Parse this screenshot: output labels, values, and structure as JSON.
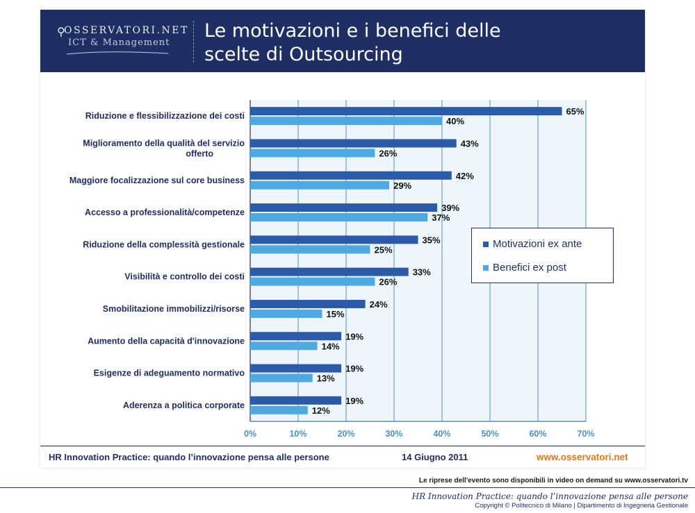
{
  "header": {
    "logo_text": "OSSERVATORI.NET",
    "logo_sub": "ICT & Management",
    "title_line1": "Le motivazioni e i benefici delle",
    "title_line2": "scelte di Outsourcing"
  },
  "colors": {
    "header_bg": "#1f2f63",
    "series_ante": "#2a5aa8",
    "series_post": "#4fa9e0",
    "grid": "#4f92c8",
    "accent_orange": "#e07a1f"
  },
  "chart_data": {
    "type": "bar",
    "orientation": "horizontal",
    "categories": [
      [
        "Riduzione e flessibilizzazione dei costi"
      ],
      [
        "Miglioramento della qualità del servizio",
        "offerto"
      ],
      [
        "Maggiore focalizzazione sul core business"
      ],
      [
        "Accesso a professionalità/competenze"
      ],
      [
        "Riduzione della complessità gestionale"
      ],
      [
        "Visibilità e controllo dei costi"
      ],
      [
        "Smobilitazione immobilizzi/risorse"
      ],
      [
        "Aumento della capacità d'innovazione"
      ],
      [
        "Esigenze di adeguamento normativo"
      ],
      [
        "Aderenza a politica corporate"
      ]
    ],
    "series": [
      {
        "name": "Motivazioni ex ante",
        "values": [
          65,
          43,
          42,
          39,
          35,
          33,
          24,
          19,
          19,
          19
        ]
      },
      {
        "name": "Benefici ex post",
        "values": [
          40,
          26,
          29,
          37,
          25,
          26,
          15,
          14,
          13,
          12
        ]
      }
    ],
    "xlim": [
      0,
      70
    ],
    "ticks": [
      0,
      10,
      20,
      30,
      40,
      50,
      60,
      70
    ],
    "value_suffix": "%",
    "legend_position": "right"
  },
  "legend": {
    "ante": "Motivazioni ex ante",
    "post": "Benefici ex post"
  },
  "footer": {
    "left": "HR Innovation Practice: quando l’innovazione pensa alle persone",
    "date": "14 Giugno 2011",
    "site": "www.osservatori.net"
  },
  "bottom": {
    "notice": "Le riprese dell'evento sono disponibili in video on demand su www.osservatori.tv",
    "title": "HR Innovation Practice: quando l’innovazione pensa alle persone",
    "copyright": "Copyright © Politecnico di Milano | Dipartimento di Ingegneria Gestionale"
  }
}
